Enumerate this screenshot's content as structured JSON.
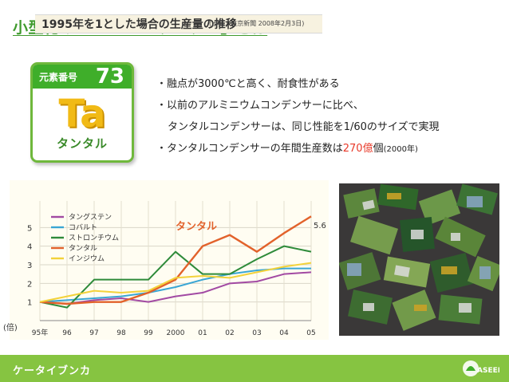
{
  "title": "小型化のヒーロー 「タンタル」とは",
  "element": {
    "label": "元素番号",
    "number": "73",
    "symbol": "Ta",
    "name": "タンタル"
  },
  "bullets": {
    "b1": "・融点が3000℃と高く、耐食性がある",
    "b2": "・以前のアルミニウムコンデンサーに比べ、",
    "b3": "タンタルコンデンサーは、同じ性能を1/60のサイズで実現",
    "b4_pre": "・タンタルコンデンサーの年間生産数は",
    "b4_red": "270億",
    "b4_post": "個",
    "b4_small": "(2000年)"
  },
  "chart_title": "1995年を1とした場合の生産量の推移",
  "chart_source": "(出典：東京新聞 2008年2月3日)",
  "unit": "(倍)",
  "footer": {
    "brand": "ケータイブンカ",
    "logo": "ASEED"
  },
  "chart_data": {
    "type": "line",
    "title": "1995年を1とした場合の生産量の推移",
    "xlabel": "",
    "ylabel": "(倍)",
    "categories": [
      "95年",
      "96",
      "97",
      "98",
      "99",
      "2000",
      "01",
      "02",
      "03",
      "04",
      "05"
    ],
    "ylim": [
      0,
      6
    ],
    "yticks": [
      "1",
      "2",
      "3",
      "4",
      "5"
    ],
    "annotations": {
      "tantalum_label": "タンタル",
      "tantalum_end": "5.6"
    },
    "series": [
      {
        "name": "タングステン",
        "color": "#a24aa3",
        "values": [
          1.0,
          0.9,
          1.1,
          1.2,
          1.0,
          1.3,
          1.5,
          2.0,
          2.1,
          2.5,
          2.6
        ]
      },
      {
        "name": "コバルト",
        "color": "#3aa6d4",
        "values": [
          1.0,
          1.1,
          1.2,
          1.3,
          1.5,
          1.8,
          2.2,
          2.5,
          2.7,
          2.8,
          2.8
        ]
      },
      {
        "name": "ストロンチウム",
        "color": "#2e8b3a",
        "values": [
          1.0,
          0.7,
          2.2,
          2.2,
          2.2,
          3.7,
          2.5,
          2.5,
          3.3,
          4.0,
          3.7
        ]
      },
      {
        "name": "タンタル",
        "color": "#e2622b",
        "values": [
          1.0,
          0.9,
          1.0,
          1.0,
          1.5,
          2.2,
          4.0,
          4.6,
          3.7,
          4.7,
          5.6
        ]
      },
      {
        "name": "インジウム",
        "color": "#f3d23a",
        "values": [
          1.0,
          1.3,
          1.6,
          1.5,
          1.6,
          2.3,
          2.4,
          2.3,
          2.6,
          2.9,
          3.1
        ]
      }
    ]
  }
}
